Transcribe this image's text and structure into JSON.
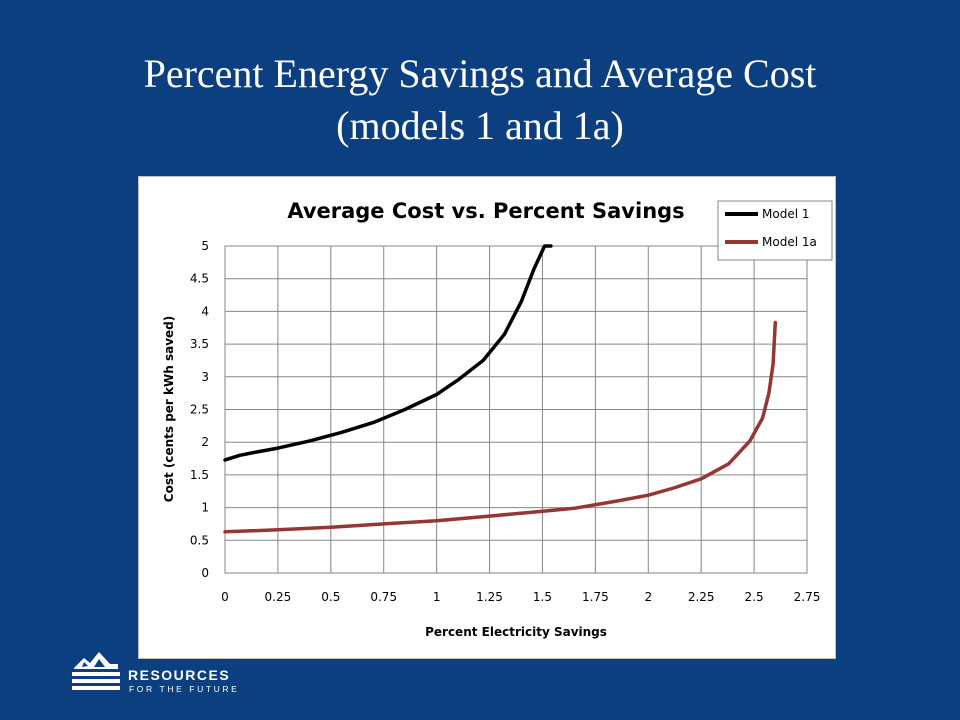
{
  "slide": {
    "title_line1": "Percent Energy Savings and Average Cost",
    "title_line2": "(models 1 and 1a)"
  },
  "logo": {
    "name_line1": "RESOURCES",
    "name_line2": "FOR THE FUTURE",
    "icon": "mountain-waves-logo-icon"
  },
  "colors": {
    "background": "#0c3f80",
    "model1": "#000000",
    "model1a": "#943634"
  },
  "chart_data": {
    "type": "line",
    "title": "Average Cost vs. Percent Savings",
    "xlabel": "Percent Electricity Savings",
    "ylabel": "Cost (cents per kWh saved)",
    "xlim": [
      0,
      2.75
    ],
    "ylim": [
      0,
      5
    ],
    "xticks": [
      "0",
      "0.25",
      "0.5",
      "0.75",
      "1",
      "1.25",
      "1.5",
      "1.75",
      "2",
      "2.25",
      "2.5",
      "2.75"
    ],
    "yticks": [
      "0",
      "0.5",
      "1",
      "1.5",
      "2",
      "2.5",
      "3",
      "3.5",
      "4",
      "4.5",
      "5"
    ],
    "grid": true,
    "legend_position": "top-right",
    "series": [
      {
        "name": "Model 1",
        "color": "#000000",
        "x": [
          0,
          0.07,
          0.15,
          0.25,
          0.4,
          0.55,
          0.7,
          0.85,
          1.0,
          1.1,
          1.22,
          1.32,
          1.4,
          1.46,
          1.51,
          1.54
        ],
        "y": [
          1.73,
          1.8,
          1.85,
          1.91,
          2.02,
          2.15,
          2.3,
          2.5,
          2.73,
          2.95,
          3.25,
          3.65,
          4.15,
          4.65,
          5.0,
          5.0
        ]
      },
      {
        "name": "Model 1a",
        "color": "#943634",
        "x": [
          0,
          0.25,
          0.5,
          0.75,
          1.0,
          1.25,
          1.45,
          1.65,
          1.85,
          2.0,
          2.12,
          2.25,
          2.38,
          2.48,
          2.54,
          2.57,
          2.59,
          2.6
        ],
        "y": [
          0.63,
          0.66,
          0.7,
          0.75,
          0.8,
          0.87,
          0.93,
          0.99,
          1.1,
          1.19,
          1.3,
          1.44,
          1.67,
          2.02,
          2.37,
          2.75,
          3.2,
          3.83
        ]
      }
    ]
  }
}
